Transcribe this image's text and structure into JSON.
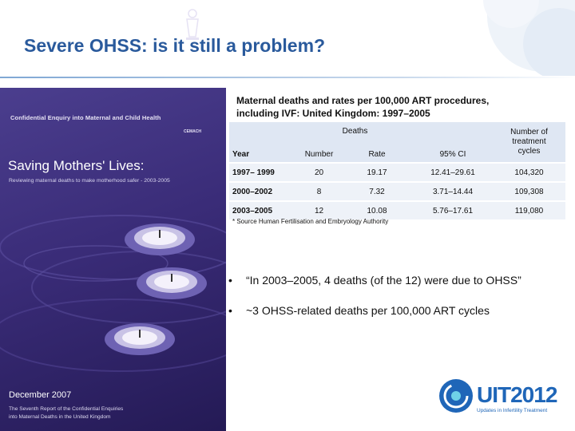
{
  "slide": {
    "title": "Severe OHSS: is it still a problem?"
  },
  "cover": {
    "enquiry": "Confidential Enquiry into Maternal and Child Health",
    "crest_label": "CEMACH",
    "title": "Saving Mothers' Lives:",
    "subtitle": "Reviewing maternal deaths to make motherhood safer - 2003-2005",
    "date": "December 2007",
    "report_line1": "The Seventh Report of the Confidential Enquiries",
    "report_line2": "into Maternal Deaths in the United Kingdom",
    "colors": {
      "background": "#3a2c78",
      "text": "#ffffff"
    }
  },
  "table": {
    "caption_line1": "Maternal deaths and rates per 100,000 ART procedures,",
    "caption_line2": "including IVF: United Kingdom: 1997–2005",
    "group_header": "Deaths",
    "headers": {
      "year": "Year",
      "number": "Number",
      "rate": "Rate",
      "ci": "95% CI",
      "cycles_line1": "Number of",
      "cycles_line2": "treatment",
      "cycles_line3": "cycles"
    },
    "rows": [
      {
        "year": "1997– 1999",
        "number": "20",
        "rate": "19.17",
        "ci": "12.41–29.61",
        "cycles": "104,320"
      },
      {
        "year": "2000–2002",
        "number": "8",
        "rate": "7.32",
        "ci": "3.71–14.44",
        "cycles": "109,308"
      },
      {
        "year": "2003–2005",
        "number": "12",
        "rate": "10.08",
        "ci": "5.76–17.61",
        "cycles": "119,080"
      }
    ],
    "footnote": "* Source Human Fertilisation and Embryology Authority"
  },
  "bullets": [
    "“In 2003–2005, 4 deaths (of the 12) were due to OHSS”",
    "~3 OHSS-related deaths per 100,000 ART cycles"
  ],
  "bullet_marker": "•",
  "logo": {
    "name": "UIT2012",
    "tagline": "Updates in Infertility Treatment",
    "color": "#1f66b8"
  },
  "colors": {
    "title": "#2a5a9c",
    "table_header": "#dfe7f3",
    "table_row": "#eef2f8"
  }
}
